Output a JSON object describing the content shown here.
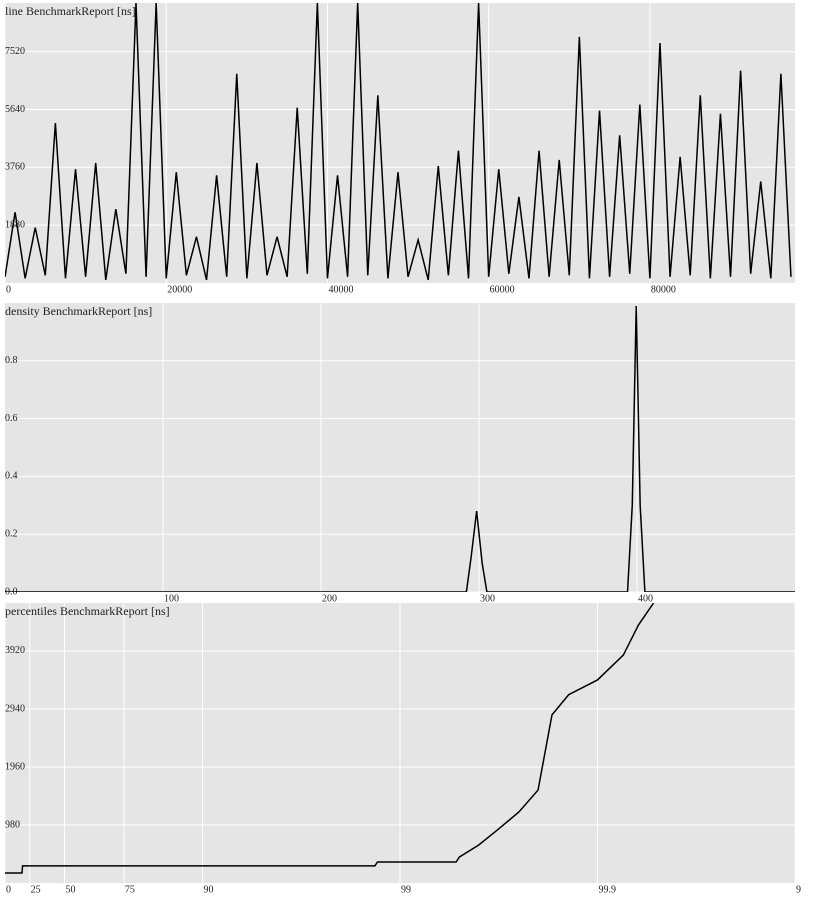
{
  "chart_data": [
    {
      "type": "line",
      "title": "line BenchmarkReport [ns]",
      "color": "#000000",
      "grid": true,
      "x": [
        0,
        1250,
        2500,
        3750,
        5000,
        6250,
        7500,
        8750,
        10000,
        11250,
        12500,
        13750,
        15000,
        16250,
        17500,
        18750,
        20000,
        21250,
        22500,
        23750,
        25000,
        26250,
        27500,
        28750,
        30000,
        31250,
        32500,
        33750,
        35000,
        36250,
        37500,
        38750,
        40000,
        41250,
        42500,
        43750,
        45000,
        46250,
        47500,
        48750,
        50000,
        51250,
        52500,
        53750,
        55000,
        56250,
        57500,
        58750,
        60000,
        61250,
        62500,
        63750,
        65000,
        66250,
        67500,
        68750,
        70000,
        71250,
        72500,
        73750,
        75000,
        76250,
        77500,
        78750,
        80000,
        81250,
        82500,
        83750,
        85000,
        86250,
        87500,
        88750,
        90000,
        91250,
        92500,
        93750,
        95000,
        96250,
        97500
      ],
      "values": [
        200,
        2300,
        150,
        1800,
        250,
        5200,
        150,
        3700,
        200,
        3900,
        100,
        2400,
        300,
        9100,
        200,
        9100,
        150,
        3600,
        250,
        1500,
        100,
        3500,
        200,
        6800,
        150,
        3900,
        250,
        1500,
        200,
        5700,
        300,
        9100,
        150,
        3500,
        200,
        9100,
        250,
        6100,
        150,
        3600,
        200,
        1400,
        100,
        3800,
        250,
        4300,
        150,
        9100,
        200,
        3700,
        300,
        2800,
        150,
        4300,
        200,
        4000,
        250,
        8000,
        150,
        5600,
        200,
        4800,
        300,
        5800,
        150,
        7800,
        200,
        4100,
        250,
        6100,
        150,
        5500,
        200,
        6900,
        300,
        3300,
        150,
        6800,
        200
      ],
      "xlim": [
        0,
        98000
      ],
      "xticks": [
        0,
        20000,
        40000,
        60000,
        80000
      ],
      "ylim": [
        0,
        9100
      ],
      "yticks": [
        1880,
        3760,
        5640,
        7520
      ]
    },
    {
      "type": "line",
      "title": "density BenchmarkReport [ns]",
      "color": "#000000",
      "grid": true,
      "x": [
        0,
        292,
        295,
        298.5,
        302,
        305,
        394,
        397,
        399.5,
        402,
        405,
        500
      ],
      "values": [
        0,
        0,
        0.12,
        0.28,
        0.1,
        0,
        0,
        0.3,
        0.99,
        0.3,
        0,
        0
      ],
      "xlim": [
        0,
        500
      ],
      "xticks": [
        100,
        200,
        300,
        400
      ],
      "ylim": [
        0,
        1.0
      ],
      "yticks": [
        {
          "value": 0,
          "label": "0.0"
        },
        0.2,
        0.4,
        0.6,
        0.8
      ]
    },
    {
      "type": "line",
      "title": "percentiles BenchmarkReport [ns]",
      "color": "#000000",
      "grid": true,
      "xscale": "percentile",
      "x": [
        0,
        18,
        18.5,
        98.66,
        98.7,
        99.48,
        99.5,
        99.6,
        99.68,
        99.75,
        99.8,
        99.83,
        99.86,
        99.9,
        99.926,
        99.938,
        99.948
      ],
      "values": [
        170,
        170,
        290,
        290,
        355,
        355,
        440,
        640,
        900,
        1200,
        1570,
        2840,
        3180,
        3430,
        3850,
        4360,
        4730
      ],
      "xlim": [
        0,
        99.99
      ],
      "xticks": [
        0,
        25,
        50,
        75,
        90,
        99,
        99.9,
        {
          "value": 99.99,
          "label": "9"
        }
      ],
      "ylim": [
        0,
        4730
      ],
      "yticks": [
        980,
        1960,
        2940,
        3920
      ]
    }
  ]
}
